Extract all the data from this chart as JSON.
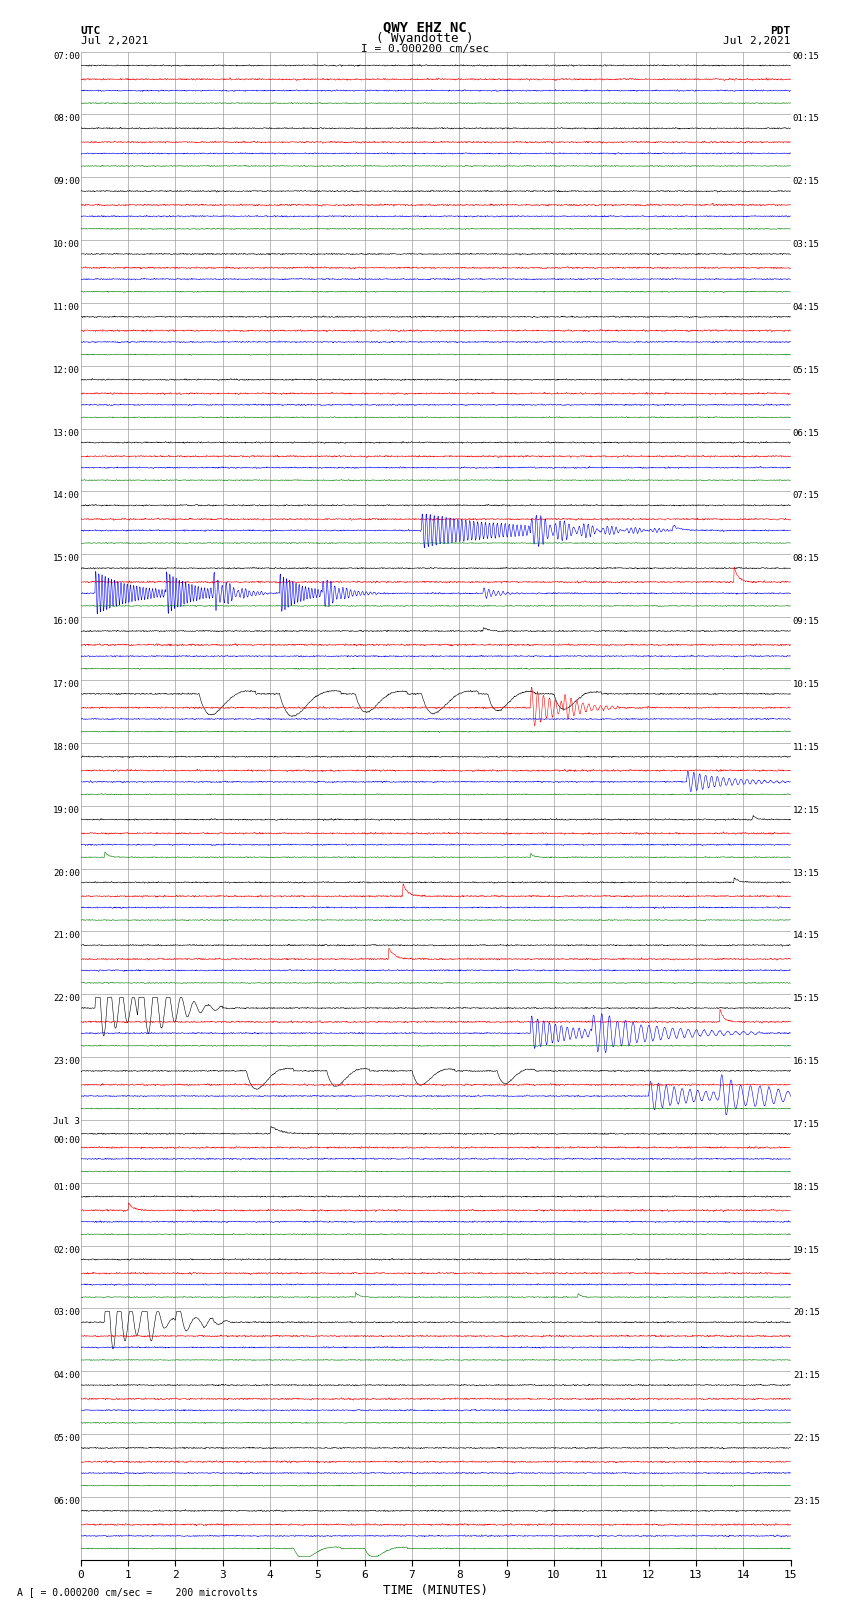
{
  "title_line1": "QWY EHZ NC",
  "title_line2": "( Wyandotte )",
  "scale_text": "I = 0.000200 cm/sec",
  "utc_label": "UTC",
  "pdt_label": "PDT",
  "date_left": "Jul 2,2021",
  "date_right": "Jul 2,2021",
  "bottom_note": "A [ = 0.000200 cm/sec =    200 microvolts",
  "xlabel": "TIME (MINUTES)",
  "n_rows": 24,
  "x_ticks": [
    0,
    1,
    2,
    3,
    4,
    5,
    6,
    7,
    8,
    9,
    10,
    11,
    12,
    13,
    14,
    15
  ],
  "bg_color": "white",
  "grid_color": "#888888",
  "fig_width": 8.5,
  "fig_height": 16.13,
  "dpi": 100,
  "left_label_rows_utc": [
    "07:00",
    "08:00",
    "09:00",
    "10:00",
    "11:00",
    "12:00",
    "13:00",
    "14:00",
    "15:00",
    "16:00",
    "17:00",
    "18:00",
    "19:00",
    "20:00",
    "21:00",
    "22:00",
    "23:00",
    "Jul 3\n00:00",
    "01:00",
    "02:00",
    "03:00",
    "04:00",
    "05:00",
    "06:00"
  ],
  "right_label_rows_pdt": [
    "00:15",
    "01:15",
    "02:15",
    "03:15",
    "04:15",
    "05:15",
    "06:15",
    "07:15",
    "08:15",
    "09:15",
    "10:15",
    "11:15",
    "12:15",
    "13:15",
    "14:15",
    "15:15",
    "16:15",
    "17:15",
    "18:15",
    "19:15",
    "20:15",
    "21:15",
    "22:15",
    "23:15"
  ],
  "trace_colors": [
    "black",
    "red",
    "blue",
    "green"
  ],
  "trace_offsets": [
    0.78,
    0.56,
    0.38,
    0.18
  ],
  "noise_amps": [
    0.008,
    0.01,
    0.008,
    0.006
  ],
  "noise_kernel": 3
}
